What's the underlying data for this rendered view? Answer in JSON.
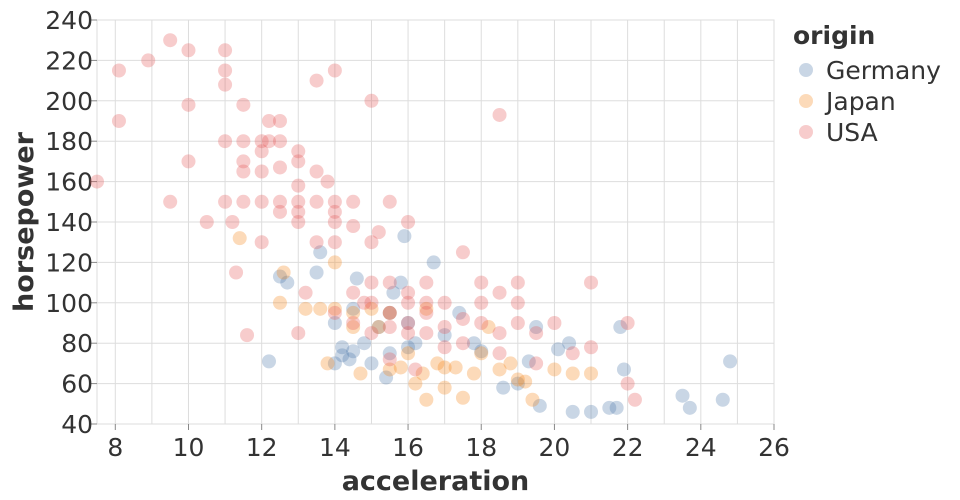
{
  "chart_data": {
    "type": "scatter",
    "title": "",
    "xlabel": "acceleration",
    "ylabel": "horsepower",
    "xlim": [
      7.5,
      26
    ],
    "ylim": [
      40,
      240
    ],
    "x_ticks": [
      8,
      10,
      12,
      14,
      16,
      18,
      20,
      22,
      24,
      26
    ],
    "y_ticks": [
      40,
      60,
      80,
      100,
      120,
      140,
      160,
      180,
      200,
      220,
      240
    ],
    "grid": true,
    "legend": {
      "title": "origin",
      "position": "right"
    },
    "point_opacity": 0.3,
    "series": [
      {
        "name": "Germany",
        "color": "#4c78a8",
        "points": [
          [
            12.2,
            71
          ],
          [
            12.5,
            113
          ],
          [
            12.7,
            110
          ],
          [
            13.5,
            115
          ],
          [
            13.6,
            125
          ],
          [
            14.0,
            90
          ],
          [
            14.0,
            70
          ],
          [
            14.2,
            78
          ],
          [
            14.2,
            74
          ],
          [
            14.4,
            72
          ],
          [
            14.5,
            97
          ],
          [
            14.5,
            76
          ],
          [
            14.6,
            112
          ],
          [
            14.8,
            80
          ],
          [
            15.0,
            70
          ],
          [
            15.2,
            88
          ],
          [
            15.4,
            63
          ],
          [
            15.5,
            75
          ],
          [
            15.5,
            95
          ],
          [
            15.6,
            105
          ],
          [
            15.8,
            110
          ],
          [
            15.9,
            133
          ],
          [
            16.0,
            90
          ],
          [
            16.0,
            78
          ],
          [
            16.2,
            80
          ],
          [
            16.7,
            120
          ],
          [
            17.0,
            84
          ],
          [
            17.4,
            95
          ],
          [
            17.8,
            80
          ],
          [
            18.0,
            76
          ],
          [
            18.6,
            58
          ],
          [
            19.0,
            60
          ],
          [
            19.3,
            71
          ],
          [
            19.5,
            88
          ],
          [
            19.6,
            49
          ],
          [
            20.1,
            77
          ],
          [
            20.4,
            80
          ],
          [
            20.5,
            46
          ],
          [
            21.0,
            46
          ],
          [
            21.5,
            48
          ],
          [
            21.7,
            48
          ],
          [
            21.8,
            88
          ],
          [
            21.9,
            67
          ],
          [
            23.5,
            54
          ],
          [
            23.7,
            48
          ],
          [
            24.6,
            52
          ],
          [
            24.8,
            71
          ]
        ]
      },
      {
        "name": "Japan",
        "color": "#f58518",
        "points": [
          [
            11.4,
            132
          ],
          [
            12.5,
            100
          ],
          [
            12.6,
            115
          ],
          [
            13.2,
            97
          ],
          [
            13.6,
            97
          ],
          [
            13.8,
            70
          ],
          [
            14.0,
            120
          ],
          [
            14.0,
            97
          ],
          [
            14.5,
            95
          ],
          [
            14.5,
            88
          ],
          [
            14.7,
            65
          ],
          [
            15.0,
            97
          ],
          [
            15.2,
            88
          ],
          [
            15.5,
            95
          ],
          [
            15.5,
            67
          ],
          [
            15.8,
            68
          ],
          [
            16.0,
            75
          ],
          [
            16.2,
            60
          ],
          [
            16.4,
            65
          ],
          [
            16.5,
            52
          ],
          [
            16.5,
            97
          ],
          [
            16.8,
            70
          ],
          [
            17.0,
            68
          ],
          [
            17.0,
            58
          ],
          [
            17.3,
            68
          ],
          [
            17.5,
            53
          ],
          [
            17.8,
            65
          ],
          [
            18.0,
            75
          ],
          [
            18.2,
            88
          ],
          [
            18.5,
            67
          ],
          [
            18.8,
            70
          ],
          [
            19.0,
            62
          ],
          [
            19.2,
            61
          ],
          [
            19.4,
            52
          ],
          [
            20.0,
            67
          ],
          [
            20.5,
            65
          ],
          [
            21.0,
            65
          ]
        ]
      },
      {
        "name": "USA",
        "color": "#e45756",
        "points": [
          [
            7.5,
            160
          ],
          [
            8.1,
            215
          ],
          [
            8.1,
            190
          ],
          [
            8.9,
            220
          ],
          [
            9.5,
            230
          ],
          [
            9.5,
            150
          ],
          [
            10.0,
            225
          ],
          [
            10.0,
            198
          ],
          [
            10.0,
            170
          ],
          [
            10.5,
            140
          ],
          [
            11.0,
            225
          ],
          [
            11.0,
            215
          ],
          [
            11.0,
            208
          ],
          [
            11.0,
            180
          ],
          [
            11.0,
            150
          ],
          [
            11.2,
            140
          ],
          [
            11.3,
            115
          ],
          [
            11.5,
            198
          ],
          [
            11.5,
            180
          ],
          [
            11.5,
            170
          ],
          [
            11.5,
            165
          ],
          [
            11.5,
            150
          ],
          [
            11.6,
            84
          ],
          [
            12.0,
            180
          ],
          [
            12.0,
            175
          ],
          [
            12.0,
            165
          ],
          [
            12.0,
            150
          ],
          [
            12.0,
            130
          ],
          [
            12.2,
            190
          ],
          [
            12.2,
            180
          ],
          [
            12.5,
            190
          ],
          [
            12.5,
            180
          ],
          [
            12.5,
            167
          ],
          [
            12.5,
            150
          ],
          [
            12.5,
            145
          ],
          [
            13.0,
            175
          ],
          [
            13.0,
            170
          ],
          [
            13.0,
            158
          ],
          [
            13.0,
            150
          ],
          [
            13.0,
            145
          ],
          [
            13.0,
            140
          ],
          [
            13.0,
            85
          ],
          [
            13.2,
            105
          ],
          [
            13.5,
            165
          ],
          [
            13.5,
            150
          ],
          [
            13.5,
            130
          ],
          [
            13.5,
            210
          ],
          [
            13.8,
            160
          ],
          [
            14.0,
            215
          ],
          [
            14.0,
            150
          ],
          [
            14.0,
            145
          ],
          [
            14.0,
            140
          ],
          [
            14.0,
            130
          ],
          [
            14.0,
            95
          ],
          [
            14.5,
            150
          ],
          [
            14.5,
            138
          ],
          [
            14.5,
            105
          ],
          [
            14.5,
            90
          ],
          [
            14.8,
            100
          ],
          [
            15.0,
            200
          ],
          [
            15.0,
            130
          ],
          [
            15.0,
            110
          ],
          [
            15.0,
            100
          ],
          [
            15.0,
            85
          ],
          [
            15.2,
            135
          ],
          [
            15.5,
            150
          ],
          [
            15.5,
            110
          ],
          [
            15.5,
            95
          ],
          [
            15.5,
            88
          ],
          [
            15.5,
            72
          ],
          [
            16.0,
            140
          ],
          [
            16.0,
            105
          ],
          [
            16.0,
            100
          ],
          [
            16.0,
            90
          ],
          [
            16.0,
            85
          ],
          [
            16.2,
            67
          ],
          [
            16.5,
            110
          ],
          [
            16.5,
            100
          ],
          [
            16.5,
            95
          ],
          [
            16.5,
            85
          ],
          [
            17.0,
            100
          ],
          [
            17.0,
            88
          ],
          [
            17.0,
            78
          ],
          [
            17.5,
            125
          ],
          [
            17.5,
            92
          ],
          [
            17.5,
            80
          ],
          [
            18.0,
            110
          ],
          [
            18.0,
            100
          ],
          [
            18.0,
            90
          ],
          [
            18.5,
            193
          ],
          [
            18.5,
            105
          ],
          [
            18.5,
            85
          ],
          [
            18.5,
            75
          ],
          [
            19.0,
            110
          ],
          [
            19.0,
            100
          ],
          [
            19.0,
            90
          ],
          [
            19.5,
            85
          ],
          [
            19.5,
            70
          ],
          [
            20.0,
            90
          ],
          [
            20.5,
            75
          ],
          [
            21.0,
            110
          ],
          [
            21.0,
            78
          ],
          [
            22.0,
            90
          ],
          [
            22.0,
            60
          ],
          [
            22.2,
            52
          ]
        ]
      }
    ]
  }
}
